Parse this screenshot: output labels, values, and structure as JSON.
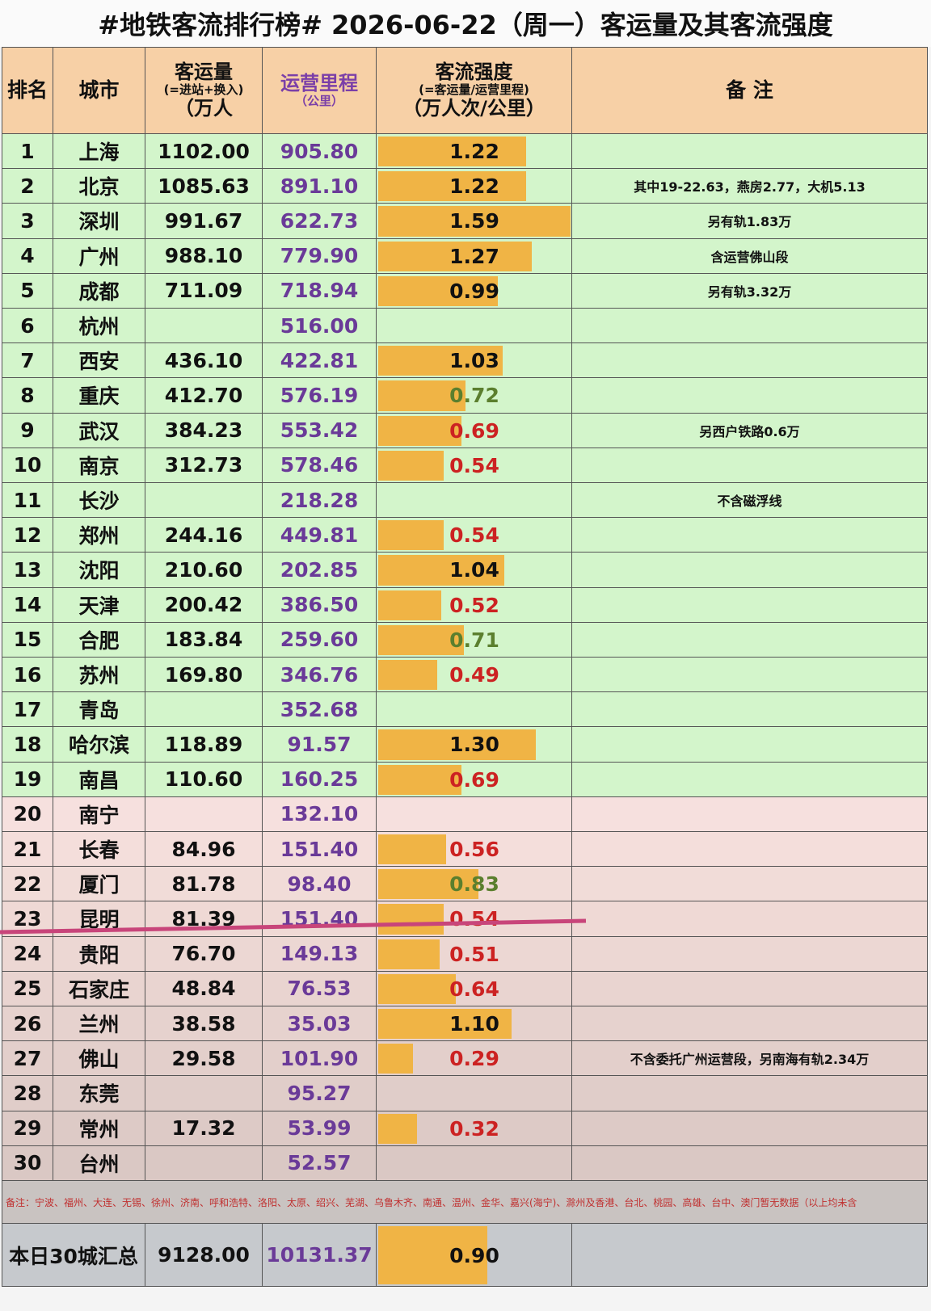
{
  "title": "#地铁客流排行榜# 2026-06-22（周一）客运量及其客流强度",
  "header": {
    "rank": "排名",
    "city": "城市",
    "ridership": [
      "客运量",
      "(=进站+换入)",
      "（万人"
    ],
    "length": [
      "运营里程",
      "（公里）"
    ],
    "intensity": [
      "客流强度",
      "(=客运量/运营里程)",
      "（万人次/公里）"
    ],
    "note": "备 注"
  },
  "rows": [
    {
      "rank": "1",
      "city": "上海",
      "ridership": "1102.00",
      "length": "905.80",
      "intensity": "1.22",
      "intensity_color": "#111111",
      "note": null,
      "bg": "#d3f5cb"
    },
    {
      "rank": "2",
      "city": "北京",
      "ridership": "1085.63",
      "length": "891.10",
      "intensity": "1.22",
      "intensity_color": "#111111",
      "note": "其中19-22.63，燕房2.77，大机5.13",
      "bg": "#d3f5cb"
    },
    {
      "rank": "3",
      "city": "深圳",
      "ridership": "991.67",
      "length": "622.73",
      "intensity": "1.59",
      "intensity_color": "#111111",
      "note": "另有轨1.83万",
      "bg": "#d3f5cb"
    },
    {
      "rank": "4",
      "city": "广州",
      "ridership": "988.10",
      "length": "779.90",
      "intensity": "1.27",
      "intensity_color": "#111111",
      "note": "含运营佛山段",
      "bg": "#d3f5cb"
    },
    {
      "rank": "5",
      "city": "成都",
      "ridership": "711.09",
      "length": "718.94",
      "intensity": "0.99",
      "intensity_color": "#111111",
      "note": "另有轨3.32万",
      "bg": "#d3f5cb"
    },
    {
      "rank": "6",
      "city": "杭州",
      "ridership": null,
      "length": "516.00",
      "intensity": null,
      "intensity_color": "#111111",
      "note": null,
      "bg": "#d3f5cb"
    },
    {
      "rank": "7",
      "city": "西安",
      "ridership": "436.10",
      "length": "422.81",
      "intensity": "1.03",
      "intensity_color": "#111111",
      "note": null,
      "bg": "#d3f5cb"
    },
    {
      "rank": "8",
      "city": "重庆",
      "ridership": "412.70",
      "length": "576.19",
      "intensity": "0.72",
      "intensity_color": "#5b7f2e",
      "note": null,
      "bg": "#d3f5cb"
    },
    {
      "rank": "9",
      "city": "武汉",
      "ridership": "384.23",
      "length": "553.42",
      "intensity": "0.69",
      "intensity_color": "#cc2222",
      "note": "另西户铁路0.6万",
      "bg": "#d3f5cb"
    },
    {
      "rank": "10",
      "city": "南京",
      "ridership": "312.73",
      "length": "578.46",
      "intensity": "0.54",
      "intensity_color": "#cc2222",
      "note": null,
      "bg": "#d3f5cb"
    },
    {
      "rank": "11",
      "city": "长沙",
      "ridership": null,
      "length": "218.28",
      "intensity": null,
      "intensity_color": "#111111",
      "note": "不含磁浮线",
      "bg": "#d3f5cb"
    },
    {
      "rank": "12",
      "city": "郑州",
      "ridership": "244.16",
      "length": "449.81",
      "intensity": "0.54",
      "intensity_color": "#cc2222",
      "note": null,
      "bg": "#d3f5cb"
    },
    {
      "rank": "13",
      "city": "沈阳",
      "ridership": "210.60",
      "length": "202.85",
      "intensity": "1.04",
      "intensity_color": "#111111",
      "note": null,
      "bg": "#d3f5cb"
    },
    {
      "rank": "14",
      "city": "天津",
      "ridership": "200.42",
      "length": "386.50",
      "intensity": "0.52",
      "intensity_color": "#cc2222",
      "note": null,
      "bg": "#d3f5cb"
    },
    {
      "rank": "15",
      "city": "合肥",
      "ridership": "183.84",
      "length": "259.60",
      "intensity": "0.71",
      "intensity_color": "#5b7f2e",
      "note": null,
      "bg": "#d3f5cb"
    },
    {
      "rank": "16",
      "city": "苏州",
      "ridership": "169.80",
      "length": "346.76",
      "intensity": "0.49",
      "intensity_color": "#cc2222",
      "note": null,
      "bg": "#d3f5cb"
    },
    {
      "rank": "17",
      "city": "青岛",
      "ridership": null,
      "length": "352.68",
      "intensity": null,
      "intensity_color": "#111111",
      "note": null,
      "bg": "#d3f5cb"
    },
    {
      "rank": "18",
      "city": "哈尔滨",
      "ridership": "118.89",
      "length": "91.57",
      "intensity": "1.30",
      "intensity_color": "#111111",
      "note": null,
      "bg": "#d3f5cb"
    },
    {
      "rank": "19",
      "city": "南昌",
      "ridership": "110.60",
      "length": "160.25",
      "intensity": "0.69",
      "intensity_color": "#cc2222",
      "note": null,
      "bg": "#d3f5cb"
    },
    {
      "rank": "20",
      "city": "南宁",
      "ridership": null,
      "length": "132.10",
      "intensity": null,
      "intensity_color": "#111111",
      "note": null,
      "bg": "#f6e0de"
    },
    {
      "rank": "21",
      "city": "长春",
      "ridership": "84.96",
      "length": "151.40",
      "intensity": "0.56",
      "intensity_color": "#cc2222",
      "note": null,
      "bg": "#f4dedb"
    },
    {
      "rank": "22",
      "city": "厦门",
      "ridership": "81.78",
      "length": "98.40",
      "intensity": "0.83",
      "intensity_color": "#5b7f2e",
      "note": null,
      "bg": "#f1dcd8"
    },
    {
      "rank": "23",
      "city": "昆明",
      "ridership": "81.39",
      "length": "151.40",
      "intensity": "0.54",
      "intensity_color": "#cc2222",
      "note": null,
      "bg": "#efd9d5"
    },
    {
      "rank": "24",
      "city": "贵阳",
      "ridership": "76.70",
      "length": "149.13",
      "intensity": "0.51",
      "intensity_color": "#cc2222",
      "note": null,
      "bg": "#ecd7d3"
    },
    {
      "rank": "25",
      "city": "石家庄",
      "ridership": "48.84",
      "length": "76.53",
      "intensity": "0.64",
      "intensity_color": "#cc2222",
      "note": null,
      "bg": "#e9d4d0"
    },
    {
      "rank": "26",
      "city": "兰州",
      "ridership": "38.58",
      "length": "35.03",
      "intensity": "1.10",
      "intensity_color": "#111111",
      "note": null,
      "bg": "#e6d2ce"
    },
    {
      "rank": "27",
      "city": "佛山",
      "ridership": "29.58",
      "length": "101.90",
      "intensity": "0.29",
      "intensity_color": "#cc2222",
      "note": "不含委托广州运营段，另南海有轨2.34万",
      "bg": "#e3cfcb"
    },
    {
      "rank": "28",
      "city": "东莞",
      "ridership": null,
      "length": "95.27",
      "intensity": null,
      "intensity_color": "#111111",
      "note": null,
      "bg": "#e0cdc9"
    },
    {
      "rank": "29",
      "city": "常州",
      "ridership": "17.32",
      "length": "53.99",
      "intensity": "0.32",
      "intensity_color": "#cc2222",
      "note": null,
      "bg": "#ddcac6"
    },
    {
      "rank": "30",
      "city": "台州",
      "ridership": null,
      "length": "52.57",
      "intensity": null,
      "intensity_color": "#111111",
      "note": null,
      "bg": "#dac8c4"
    }
  ],
  "footnote": "备注：宁波、福州、大连、无锡、徐州、济南、呼和浩特、洛阳、太原、绍兴、芜湖、乌鲁木齐、南通、温州、金华、嘉兴(海宁)、滁州及香港、台北、桃园、高雄、台中、澳门暂无数据（以上均未含",
  "total": {
    "label": "本日30城汇总",
    "ridership": "9128.00",
    "length": "10131.37",
    "intensity": "0.90"
  }
}
